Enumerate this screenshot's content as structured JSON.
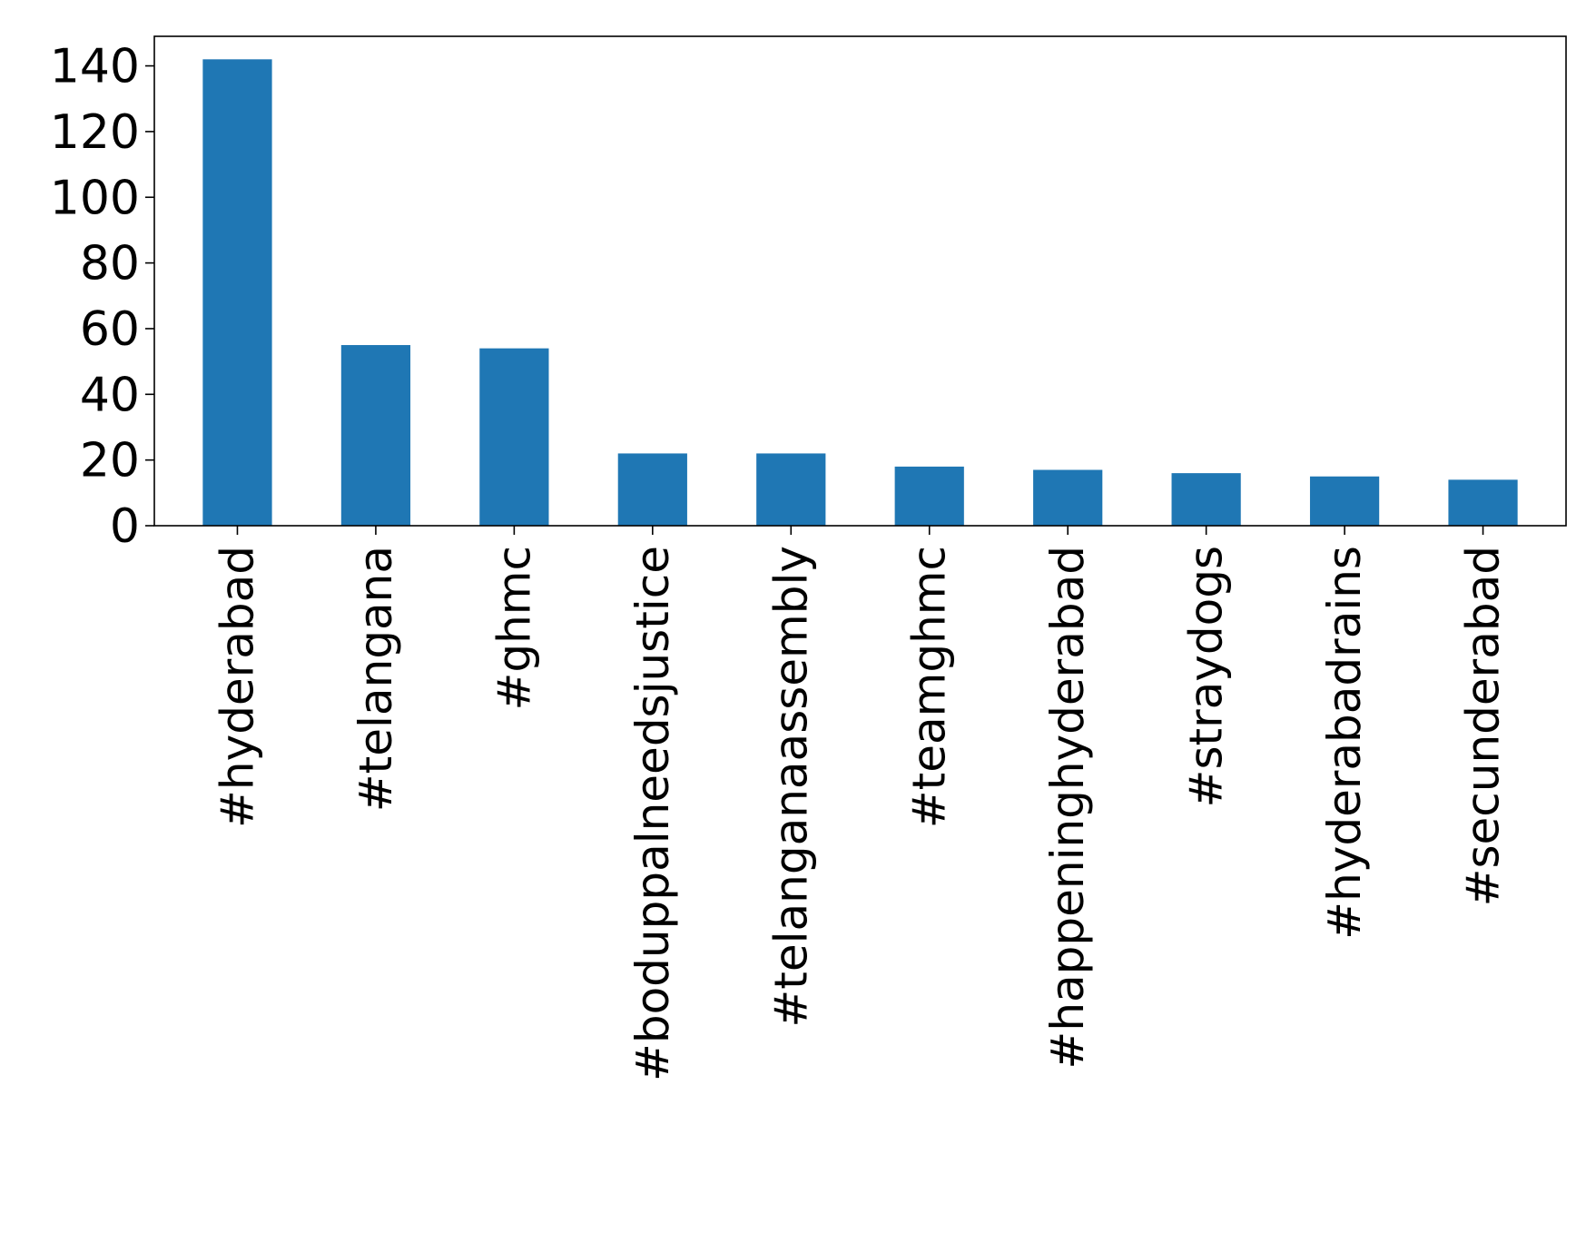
{
  "chart_data": {
    "type": "bar",
    "title": "",
    "xlabel": "",
    "ylabel": "",
    "categories": [
      "#hyderabad",
      "#telangana",
      "#ghmc",
      "#boduppalneedsjustice",
      "#telanganaassembly",
      "#teamghmc",
      "#happeninghyderabad",
      "#straydogs",
      "#hyderabadrains",
      "#secunderabad"
    ],
    "values": [
      142,
      55,
      54,
      22,
      22,
      18,
      17,
      16,
      15,
      14
    ],
    "ylim": [
      0,
      149
    ],
    "yticks": [
      0,
      20,
      40,
      60,
      80,
      100,
      120,
      140
    ],
    "bar_color": "#1f77b4",
    "grid": false,
    "legend": "none"
  }
}
